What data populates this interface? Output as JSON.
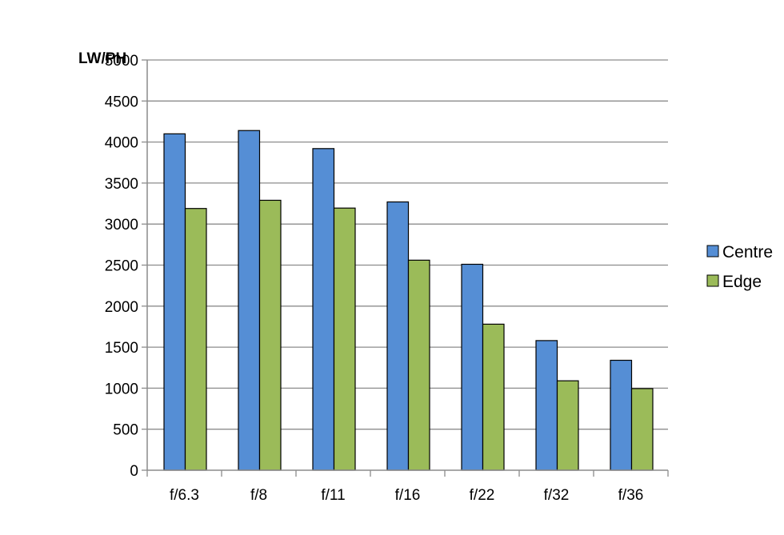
{
  "chart_data": {
    "type": "bar",
    "ylabel": "LW/PH",
    "xlabel": "",
    "title": "",
    "categories": [
      "f/6.3",
      "f/8",
      "f/11",
      "f/16",
      "f/22",
      "f/32",
      "f/36"
    ],
    "ylim": [
      0,
      5000
    ],
    "ytick_step": 500,
    "yticks": [
      "0",
      "500",
      "1000",
      "1500",
      "2000",
      "2500",
      "3000",
      "3500",
      "4000",
      "4500",
      "5000"
    ],
    "grid": true,
    "legend_position": "right",
    "series": [
      {
        "name": "Centre",
        "color": "#558ED5",
        "values": [
          4100,
          4140,
          3920,
          3270,
          2510,
          1580,
          1340
        ]
      },
      {
        "name": "Edge",
        "color": "#9BBB59",
        "values": [
          3190,
          3290,
          3195,
          2560,
          1780,
          1090,
          995
        ]
      }
    ]
  }
}
